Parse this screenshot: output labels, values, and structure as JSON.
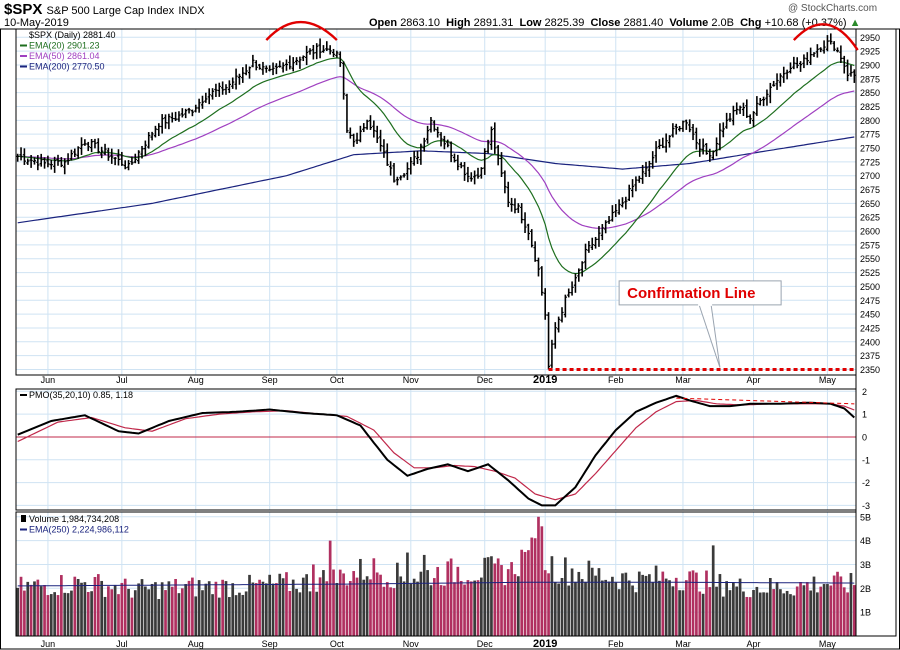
{
  "header": {
    "symbol": "$SPX",
    "name": "S&P 500 Large Cap Index",
    "exchange": "INDX",
    "date": "10-May-2019",
    "open_label": "Open",
    "open": "2863.10",
    "high_label": "High",
    "high": "2891.31",
    "low_label": "Low",
    "low": "2825.39",
    "close_label": "Close",
    "close": "2881.40",
    "volume_label": "Volume",
    "volume": "2.0B",
    "chg_label": "Chg",
    "chg": "+10.68 (+0.37%)",
    "chg_arrow": "▲",
    "watermark": "@ StockCharts.com"
  },
  "colors": {
    "price_bar": "#000000",
    "ema20": "#1e6e1e",
    "ema50": "#a040c0",
    "ema200": "#1a237e",
    "pmo": "#000000",
    "pmo_signal": "#c0284a",
    "zero_line": "#c0284a",
    "volume_up": "#3a3a3a",
    "volume_down": "#b03060",
    "volume_ema": "#1a237e",
    "annotation_red": "#e00000",
    "grid": "#cfe3f3",
    "callout_border": "#9aa4b0"
  },
  "panels": [
    {
      "id": "price",
      "legend": [
        {
          "text": "$SPX (Daily) 2881.40",
          "color": "#000000",
          "marker": "none"
        },
        {
          "text": "EMA(20) 2901.23",
          "color": "#1e6e1e",
          "marker": "line"
        },
        {
          "text": "EMA(50) 2861.04",
          "color": "#a040c0",
          "marker": "line"
        },
        {
          "text": "EMA(200) 2770.50",
          "color": "#1a237e",
          "marker": "line"
        }
      ]
    },
    {
      "id": "pmo",
      "legend": [
        {
          "text": "PMO(35,20,10) 0.85, 1.18",
          "color": "#000000",
          "marker": "line"
        }
      ]
    },
    {
      "id": "volume",
      "legend": [
        {
          "text": "Volume 1,984,734,208",
          "color": "#000000",
          "marker": "bar"
        },
        {
          "text": "EMA(250) 2,224,986,112",
          "color": "#1a237e",
          "marker": "line"
        }
      ]
    }
  ],
  "annotation": {
    "callout_text": "Confirmation Line"
  },
  "chart_data": [
    {
      "type": "line",
      "title": "$SPX S&P 500 Large Cap Index INDX",
      "subtitle": "Daily, 10-May-2019",
      "x_tick_labels": [
        "Jun",
        "Jul",
        "Aug",
        "Sep",
        "Oct",
        "Nov",
        "Dec",
        "2019",
        "Feb",
        "Mar",
        "Apr",
        "May"
      ],
      "x_tick_indices": [
        9,
        31,
        53,
        75,
        95,
        117,
        139,
        157,
        178,
        198,
        219,
        241
      ],
      "n_bars": 250,
      "y_tick_labels": [
        "2350",
        "2375",
        "2400",
        "2425",
        "2450",
        "2475",
        "2500",
        "2525",
        "2550",
        "2575",
        "2600",
        "2625",
        "2650",
        "2675",
        "2700",
        "2725",
        "2750",
        "2775",
        "2800",
        "2825",
        "2850",
        "2875",
        "2900",
        "2925",
        "2950"
      ],
      "ylim": [
        2340,
        2965
      ],
      "ystep": 25,
      "close_anchors": [
        [
          0,
          2735
        ],
        [
          8,
          2722
        ],
        [
          14,
          2725
        ],
        [
          20,
          2762
        ],
        [
          28,
          2735
        ],
        [
          33,
          2715
        ],
        [
          38,
          2760
        ],
        [
          42,
          2795
        ],
        [
          48,
          2808
        ],
        [
          52,
          2820
        ],
        [
          56,
          2845
        ],
        [
          62,
          2860
        ],
        [
          66,
          2880
        ],
        [
          70,
          2905
        ],
        [
          75,
          2885
        ],
        [
          80,
          2900
        ],
        [
          86,
          2920
        ],
        [
          90,
          2930
        ],
        [
          94,
          2925
        ],
        [
          96,
          2905
        ],
        [
          98,
          2780
        ],
        [
          101,
          2760
        ],
        [
          104,
          2805
        ],
        [
          108,
          2752
        ],
        [
          112,
          2695
        ],
        [
          116,
          2712
        ],
        [
          119,
          2738
        ],
        [
          123,
          2800
        ],
        [
          126,
          2770
        ],
        [
          130,
          2732
        ],
        [
          134,
          2700
        ],
        [
          137,
          2700
        ],
        [
          141,
          2780
        ],
        [
          143,
          2725
        ],
        [
          146,
          2655
        ],
        [
          149,
          2640
        ],
        [
          152,
          2600
        ],
        [
          155,
          2530
        ],
        [
          157,
          2450
        ],
        [
          158,
          2355
        ],
        [
          160,
          2425
        ],
        [
          163,
          2475
        ],
        [
          166,
          2510
        ],
        [
          169,
          2560
        ],
        [
          172,
          2585
        ],
        [
          175,
          2610
        ],
        [
          178,
          2635
        ],
        [
          181,
          2660
        ],
        [
          184,
          2690
        ],
        [
          187,
          2710
        ],
        [
          190,
          2745
        ],
        [
          193,
          2765
        ],
        [
          196,
          2785
        ],
        [
          199,
          2800
        ],
        [
          202,
          2762
        ],
        [
          205,
          2740
        ],
        [
          207,
          2745
        ],
        [
          209,
          2780
        ],
        [
          212,
          2805
        ],
        [
          215,
          2825
        ],
        [
          218,
          2805
        ],
        [
          221,
          2835
        ],
        [
          224,
          2860
        ],
        [
          227,
          2880
        ],
        [
          230,
          2900
        ],
        [
          233,
          2900
        ],
        [
          236,
          2920
        ],
        [
          239,
          2935
        ],
        [
          241,
          2940
        ],
        [
          243,
          2935
        ],
        [
          245,
          2915
        ],
        [
          247,
          2885
        ],
        [
          249,
          2881
        ]
      ],
      "series": [
        {
          "name": "$SPX (Daily)",
          "last": 2881.4
        },
        {
          "name": "EMA(20)",
          "period": 20,
          "last": 2901.23
        },
        {
          "name": "EMA(50)",
          "period": 50,
          "last": 2861.04
        },
        {
          "name": "EMA(200)",
          "last": 2770.5,
          "anchors": [
            [
              0,
              2615
            ],
            [
              40,
              2650
            ],
            [
              80,
              2700
            ],
            [
              100,
              2738
            ],
            [
              120,
              2745
            ],
            [
              140,
              2740
            ],
            [
              160,
              2722
            ],
            [
              180,
              2712
            ],
            [
              200,
              2722
            ],
            [
              220,
              2742
            ],
            [
              249,
              2770
            ]
          ]
        }
      ],
      "support_level": 2350
    },
    {
      "type": "line",
      "title": "PMO(35,20,10)",
      "y_tick_labels": [
        "-3",
        "-2",
        "-1",
        "0",
        "1",
        "2"
      ],
      "ylim": [
        -3.2,
        2.1
      ],
      "series": [
        {
          "name": "PMO",
          "last": 0.85,
          "anchors": [
            [
              0,
              0.1
            ],
            [
              10,
              0.7
            ],
            [
              20,
              0.95
            ],
            [
              30,
              0.25
            ],
            [
              36,
              0.15
            ],
            [
              45,
              0.7
            ],
            [
              55,
              1.05
            ],
            [
              65,
              1.1
            ],
            [
              75,
              1.2
            ],
            [
              85,
              1.05
            ],
            [
              95,
              0.95
            ],
            [
              102,
              0.5
            ],
            [
              110,
              -1.0
            ],
            [
              116,
              -1.7
            ],
            [
              122,
              -1.4
            ],
            [
              128,
              -1.2
            ],
            [
              134,
              -1.5
            ],
            [
              140,
              -1.2
            ],
            [
              146,
              -1.9
            ],
            [
              152,
              -2.7
            ],
            [
              156,
              -3.0
            ],
            [
              160,
              -3.0
            ],
            [
              166,
              -2.2
            ],
            [
              172,
              -0.8
            ],
            [
              178,
              0.3
            ],
            [
              184,
              1.1
            ],
            [
              190,
              1.5
            ],
            [
              196,
              1.8
            ],
            [
              200,
              1.6
            ],
            [
              206,
              1.35
            ],
            [
              212,
              1.35
            ],
            [
              218,
              1.45
            ],
            [
              226,
              1.45
            ],
            [
              236,
              1.5
            ],
            [
              242,
              1.45
            ],
            [
              246,
              1.25
            ],
            [
              249,
              0.85
            ]
          ]
        },
        {
          "name": "Signal",
          "last": 1.18,
          "anchors": [
            [
              0,
              -0.2
            ],
            [
              12,
              0.65
            ],
            [
              22,
              0.85
            ],
            [
              32,
              0.4
            ],
            [
              40,
              0.25
            ],
            [
              50,
              0.8
            ],
            [
              60,
              1.0
            ],
            [
              70,
              1.1
            ],
            [
              80,
              1.15
            ],
            [
              90,
              1.0
            ],
            [
              98,
              0.9
            ],
            [
              106,
              0.3
            ],
            [
              112,
              -0.7
            ],
            [
              118,
              -1.35
            ],
            [
              124,
              -1.35
            ],
            [
              130,
              -1.25
            ],
            [
              136,
              -1.3
            ],
            [
              142,
              -1.5
            ],
            [
              148,
              -1.8
            ],
            [
              154,
              -2.5
            ],
            [
              160,
              -2.75
            ],
            [
              166,
              -2.5
            ],
            [
              172,
              -1.6
            ],
            [
              178,
              -0.6
            ],
            [
              184,
              0.4
            ],
            [
              190,
              1.1
            ],
            [
              196,
              1.55
            ],
            [
              202,
              1.6
            ],
            [
              208,
              1.45
            ],
            [
              216,
              1.4
            ],
            [
              224,
              1.45
            ],
            [
              234,
              1.45
            ],
            [
              242,
              1.45
            ],
            [
              246,
              1.35
            ],
            [
              249,
              1.18
            ]
          ]
        }
      ],
      "trend_annotation": [
        [
          196,
          1.7
        ],
        [
          249,
          1.45
        ]
      ],
      "zero_line": 0
    },
    {
      "type": "bar",
      "title": "Volume",
      "y_tick_labels": [
        "1B",
        "2B",
        "3B",
        "4B",
        "5B"
      ],
      "ylim": [
        0,
        5.2
      ],
      "ema_last": 2.22,
      "vol_anchors": [
        [
          0,
          2.1
        ],
        [
          20,
          2.3
        ],
        [
          35,
          2.0
        ],
        [
          50,
          2.1
        ],
        [
          70,
          2.15
        ],
        [
          85,
          2.3
        ],
        [
          95,
          2.5
        ],
        [
          105,
          2.9
        ],
        [
          115,
          2.5
        ],
        [
          125,
          2.7
        ],
        [
          135,
          2.8
        ],
        [
          145,
          2.8
        ],
        [
          150,
          3.3
        ],
        [
          155,
          3.6
        ],
        [
          160,
          2.9
        ],
        [
          175,
          2.6
        ],
        [
          185,
          2.4
        ],
        [
          195,
          2.6
        ],
        [
          205,
          2.3
        ],
        [
          215,
          2.1
        ],
        [
          230,
          2.1
        ],
        [
          240,
          2.3
        ],
        [
          249,
          2.2
        ]
      ],
      "spikes": [
        [
          88,
          3.0
        ],
        [
          93,
          4.0
        ],
        [
          116,
          3.5
        ],
        [
          121,
          3.4
        ],
        [
          131,
          2.9
        ],
        [
          147,
          3.1
        ],
        [
          152,
          3.6
        ],
        [
          154,
          4.1
        ],
        [
          155,
          5.0
        ],
        [
          156,
          4.6
        ],
        [
          207,
          3.8
        ],
        [
          211,
          2.3
        ],
        [
          156,
          4.6
        ]
      ],
      "ema_anchors": [
        [
          0,
          2.1
        ],
        [
          100,
          2.18
        ],
        [
          150,
          2.25
        ],
        [
          200,
          2.25
        ],
        [
          249,
          2.22
        ]
      ]
    }
  ]
}
